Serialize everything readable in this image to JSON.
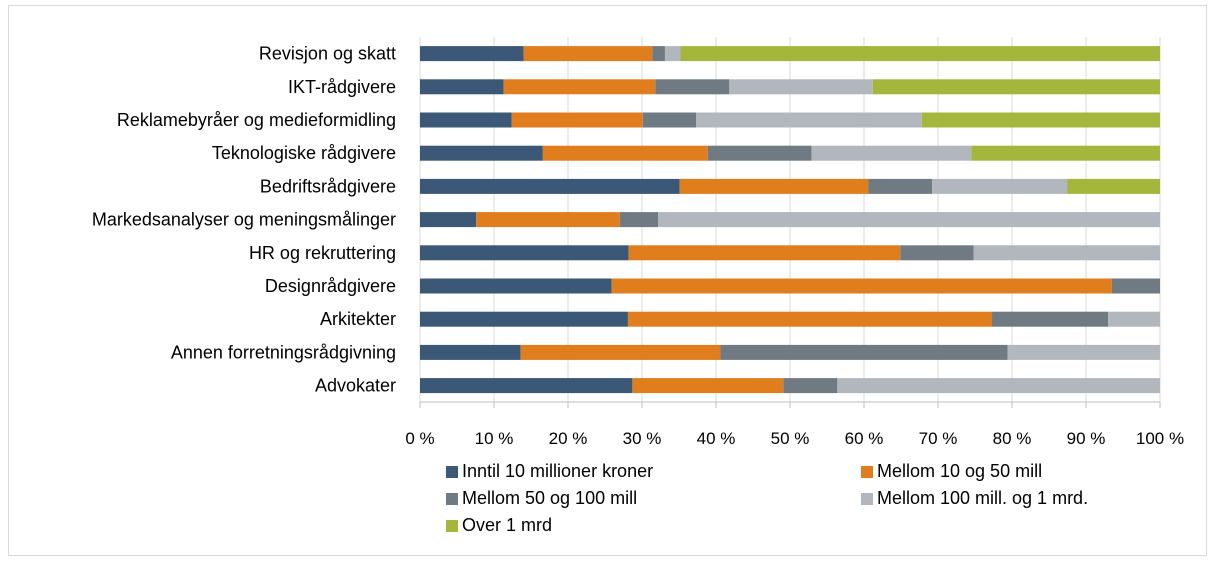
{
  "chart_data": {
    "type": "bar",
    "orientation": "horizontal",
    "stacked": "percent",
    "title": "",
    "xlabel": "",
    "ylabel": "",
    "xlim": [
      0,
      100
    ],
    "x_ticks": [
      "0 %",
      "10 %",
      "20 %",
      "30 %",
      "40 %",
      "50 %",
      "60 %",
      "70 %",
      "80 %",
      "90 %",
      "100 %"
    ],
    "grid": true,
    "legend_position": "bottom",
    "categories": [
      "Revisjon og skatt",
      "IKT-rådgivere",
      "Reklamebyråer og medieformidling",
      "Teknologiske rådgivere",
      "Bedriftsrådgivere",
      "Markedsanalyser og meningsmålinger",
      "HR og rekruttering",
      "Designrådgivere",
      "Arkitekter",
      "Annen forretningsrådgivning",
      "Advokater"
    ],
    "series": [
      {
        "name": "Inntil 10 millioner kroner",
        "color": "#3b5876",
        "values": [
          14,
          11.3,
          12.4,
          16.6,
          35.1,
          7.6,
          28.2,
          25.9,
          28.1,
          13.6,
          28.7
        ]
      },
      {
        "name": "Mellom 10 og 50 mill",
        "color": "#e07e1e",
        "values": [
          17.4,
          20.5,
          17.7,
          22.3,
          25.5,
          19.4,
          36.7,
          67.6,
          49.2,
          27,
          20.4
        ]
      },
      {
        "name": "Mellom 50 og 100 mill",
        "color": "#707a83",
        "values": [
          1.7,
          10,
          7.2,
          14,
          8.6,
          5.2,
          9.9,
          6.5,
          15.7,
          38.8,
          7.3
        ]
      },
      {
        "name": "Mellom 100 mill. og 1 mrd.",
        "color": "#b1b7bc",
        "values": [
          2.1,
          19.4,
          30.5,
          21.6,
          18.3,
          67.8,
          25.2,
          0,
          7,
          20.6,
          43.6
        ]
      },
      {
        "name": "Over 1 mrd",
        "color": "#a4b63b",
        "values": [
          64.8,
          38.8,
          32.2,
          25.5,
          12.5,
          0,
          0,
          0,
          0,
          0,
          0
        ]
      }
    ]
  }
}
